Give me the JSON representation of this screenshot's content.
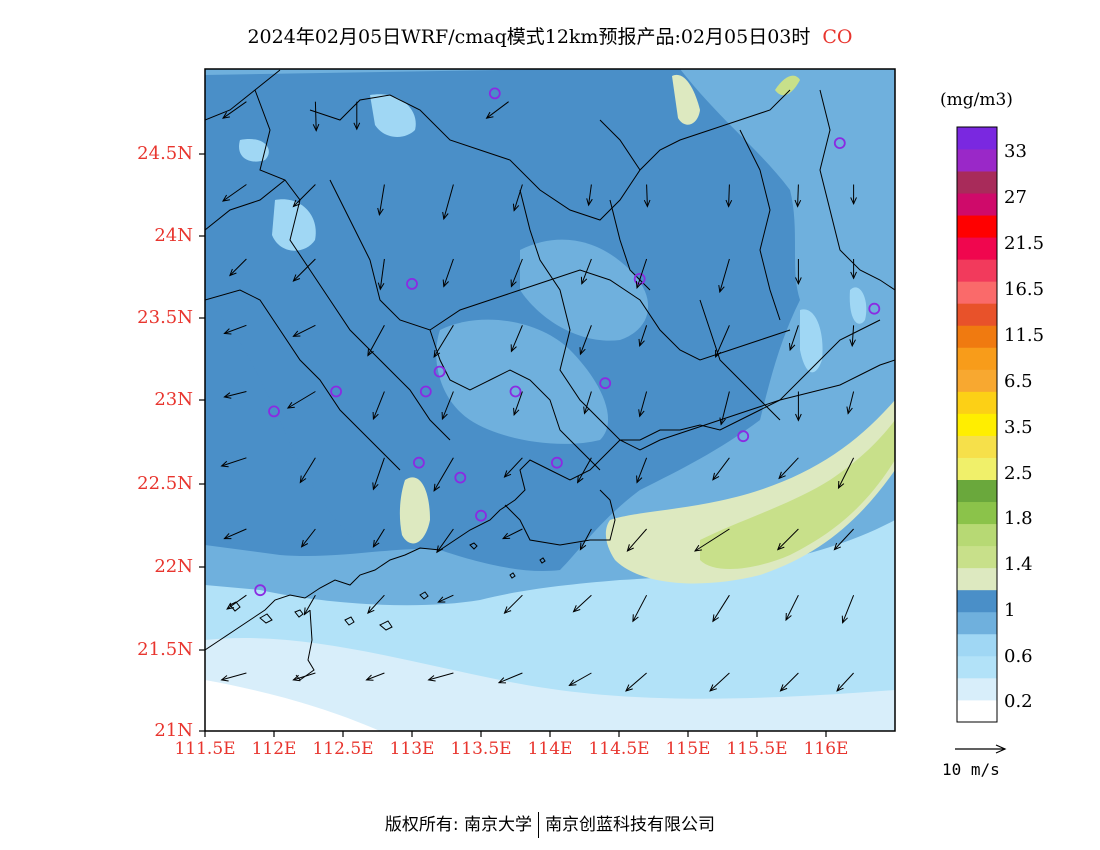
{
  "title": {
    "main": "2024年02月05日WRF/cmaq模式12km预报产品:02月05日03时",
    "species": "CO"
  },
  "colors": {
    "title_species": "#e8352e",
    "axis_labels": "#e8352e",
    "station_marker": "#8a2be2",
    "wind_arrow": "#000000",
    "coastline": "#000000"
  },
  "axes": {
    "lat_labels": [
      "24.5N",
      "24N",
      "23.5N",
      "23N",
      "22.5N",
      "22N",
      "21.5N",
      "21N"
    ],
    "lon_labels": [
      "111.5E",
      "112E",
      "112.5E",
      "113E",
      "113.5E",
      "114E",
      "114.5E",
      "115E",
      "115.5E",
      "116E"
    ]
  },
  "colorbar": {
    "units": "(mg/m3)",
    "colors": [
      "#ffffff",
      "#d8eefa",
      "#b2e2f8",
      "#a0d7f4",
      "#6fb0dd",
      "#4a8fc8",
      "#dde9c0",
      "#c8e08a",
      "#b7d974",
      "#8bc34a",
      "#6aa83c",
      "#f0f06a",
      "#f6e04a",
      "#ffee00",
      "#fcd016",
      "#f8a830",
      "#f89c1a",
      "#f07a10",
      "#e8522a",
      "#fa6a6a",
      "#f23a5c",
      "#f0064e",
      "#ff0000",
      "#cf0a6a",
      "#a82b5a",
      "#9a28c8",
      "#7a28e0"
    ],
    "labels": [
      "0.2",
      "0.6",
      "1",
      "1.4",
      "1.8",
      "2.5",
      "3.5",
      "6.5",
      "11.5",
      "16.5",
      "21.5",
      "27",
      "33"
    ]
  },
  "reference_vector": {
    "label": "10 m/s"
  },
  "footer": {
    "left": "版权所有: 南京大学",
    "right": "南京创蓝科技有限公司"
  },
  "map": {
    "lon_range": [
      111.5,
      116.5
    ],
    "lat_range": [
      21.0,
      24.95
    ],
    "stations": [
      [
        113.6,
        24.85
      ],
      [
        116.1,
        24.55
      ],
      [
        113.0,
        23.7
      ],
      [
        114.65,
        23.73
      ],
      [
        116.35,
        23.55
      ],
      [
        112.0,
        22.93
      ],
      [
        112.45,
        23.05
      ],
      [
        113.1,
        23.05
      ],
      [
        113.2,
        23.17
      ],
      [
        113.75,
        23.05
      ],
      [
        114.4,
        23.1
      ],
      [
        115.4,
        22.78
      ],
      [
        113.05,
        22.62
      ],
      [
        113.35,
        22.53
      ],
      [
        114.05,
        22.62
      ],
      [
        113.5,
        22.3
      ],
      [
        111.9,
        21.85
      ]
    ],
    "wind_vectors": [
      [
        111.8,
        24.8,
        -8.5,
        -6.0
      ],
      [
        112.3,
        24.8,
        0.3,
        -10.5
      ],
      [
        112.6,
        24.8,
        0.0,
        -10.0
      ],
      [
        113.7,
        24.8,
        -8.0,
        -6.0
      ],
      [
        111.8,
        24.3,
        -8.5,
        -6.0
      ],
      [
        112.3,
        24.3,
        -8.0,
        -8.0
      ],
      [
        112.8,
        24.3,
        -1.8,
        -11.0
      ],
      [
        113.3,
        24.3,
        -3.5,
        -12.5
      ],
      [
        113.8,
        24.3,
        -3.0,
        -9.5
      ],
      [
        114.3,
        24.3,
        -1.0,
        -7.5
      ],
      [
        114.7,
        24.3,
        0.3,
        -8.0
      ],
      [
        115.3,
        24.3,
        -0.3,
        -8.0
      ],
      [
        115.8,
        24.3,
        -0.3,
        -8.0
      ],
      [
        116.2,
        24.3,
        0.0,
        -7.0
      ],
      [
        111.8,
        23.85,
        -6.0,
        -6.0
      ],
      [
        112.3,
        23.85,
        -8.0,
        -8.0
      ],
      [
        112.8,
        23.85,
        -1.5,
        -11.0
      ],
      [
        113.3,
        23.85,
        -3.5,
        -10.0
      ],
      [
        113.8,
        23.85,
        -4.0,
        -10.0
      ],
      [
        114.3,
        23.85,
        -3.5,
        -9.0
      ],
      [
        114.7,
        23.85,
        -3.5,
        -10.5
      ],
      [
        115.3,
        23.85,
        -3.5,
        -12.0
      ],
      [
        115.8,
        23.85,
        0.0,
        -9.0
      ],
      [
        116.2,
        23.85,
        0.0,
        -7.0
      ],
      [
        111.8,
        23.45,
        -8.0,
        -3.0
      ],
      [
        112.3,
        23.45,
        -8.0,
        -4.0
      ],
      [
        112.8,
        23.45,
        -6.0,
        -11.0
      ],
      [
        113.3,
        23.45,
        -7.0,
        -11.5
      ],
      [
        113.8,
        23.45,
        -4.0,
        -9.5
      ],
      [
        114.3,
        23.45,
        -4.0,
        -10.5
      ],
      [
        114.7,
        23.45,
        -2.5,
        -7.5
      ],
      [
        115.3,
        23.45,
        -5.0,
        -11.5
      ],
      [
        115.8,
        23.45,
        -3.0,
        -9.0
      ],
      [
        116.2,
        23.45,
        -0.5,
        -7.5
      ],
      [
        111.8,
        23.05,
        -8.0,
        -2.0
      ],
      [
        112.3,
        23.05,
        -10.0,
        -6.0
      ],
      [
        112.8,
        23.05,
        -4.0,
        -10.0
      ],
      [
        113.3,
        23.05,
        -4.0,
        -10.0
      ],
      [
        113.8,
        23.05,
        -3.0,
        -8.5
      ],
      [
        114.3,
        23.05,
        -2.5,
        -8.0
      ],
      [
        114.7,
        23.05,
        -2.5,
        -9.0
      ],
      [
        115.3,
        23.05,
        -3.0,
        -12.0
      ],
      [
        115.8,
        23.05,
        0.0,
        -10.5
      ],
      [
        116.2,
        23.05,
        -2.0,
        -8.0
      ],
      [
        111.8,
        22.65,
        -9.0,
        -3.0
      ],
      [
        112.3,
        22.65,
        -5.5,
        -9.0
      ],
      [
        112.8,
        22.65,
        -4.0,
        -11.5
      ],
      [
        113.3,
        22.65,
        -7.0,
        -12.0
      ],
      [
        113.8,
        22.65,
        -6.5,
        -7.0
      ],
      [
        114.3,
        22.65,
        -5.0,
        -9.0
      ],
      [
        114.7,
        22.65,
        -3.5,
        -9.0
      ],
      [
        115.3,
        22.65,
        -6.0,
        -8.0
      ],
      [
        115.8,
        22.65,
        -7.0,
        -7.5
      ],
      [
        116.2,
        22.65,
        -5.5,
        -11.0
      ],
      [
        111.8,
        22.22,
        -8.0,
        -3.5
      ],
      [
        112.3,
        22.22,
        -5.0,
        -6.5
      ],
      [
        112.8,
        22.22,
        -4.0,
        -6.5
      ],
      [
        113.3,
        22.22,
        -6.0,
        -8.5
      ],
      [
        113.8,
        22.22,
        -7.0,
        -3.5
      ],
      [
        114.3,
        22.22,
        -4.0,
        -7.5
      ],
      [
        114.7,
        22.22,
        -7.0,
        -8.0
      ],
      [
        115.3,
        22.22,
        -12.5,
        -8.0
      ],
      [
        115.8,
        22.22,
        -7.5,
        -7.5
      ],
      [
        116.2,
        22.22,
        -7.0,
        -7.5
      ],
      [
        111.8,
        21.82,
        -7.0,
        -5.0
      ],
      [
        112.3,
        21.82,
        -4.0,
        -7.0
      ],
      [
        112.8,
        21.82,
        -6.0,
        -6.5
      ],
      [
        113.3,
        21.82,
        -5.5,
        -2.5
      ],
      [
        113.8,
        21.82,
        -6.5,
        -6.5
      ],
      [
        114.3,
        21.82,
        -6.5,
        -6.0
      ],
      [
        114.7,
        21.82,
        -5.0,
        -9.5
      ],
      [
        115.3,
        21.82,
        -6.0,
        -9.5
      ],
      [
        115.8,
        21.82,
        -4.5,
        -9.0
      ],
      [
        116.2,
        21.82,
        -4.0,
        -10.0
      ],
      [
        111.8,
        21.35,
        -9.0,
        -2.5
      ],
      [
        112.3,
        21.35,
        -8.0,
        -2.5
      ],
      [
        112.8,
        21.35,
        -6.5,
        -2.5
      ],
      [
        113.3,
        21.35,
        -9.0,
        -2.5
      ],
      [
        113.8,
        21.35,
        -8.5,
        -3.5
      ],
      [
        114.3,
        21.35,
        -8.0,
        -4.5
      ],
      [
        114.7,
        21.35,
        -7.5,
        -6.5
      ],
      [
        115.3,
        21.35,
        -7.0,
        -6.5
      ],
      [
        115.8,
        21.35,
        -6.5,
        -6.5
      ],
      [
        116.2,
        21.35,
        -6.0,
        -6.5
      ]
    ]
  }
}
